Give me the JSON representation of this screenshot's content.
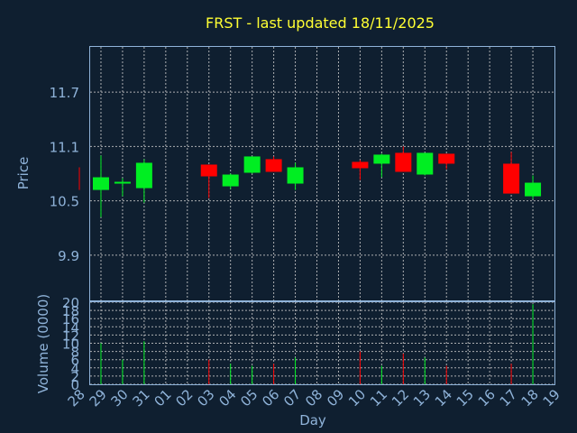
{
  "title": "FRST - last updated 18/11/2025",
  "colors": {
    "background": "#0f1f30",
    "title": "#ffff33",
    "axis": "#8fb3d9",
    "up": "#00ee22",
    "down": "#ff0000",
    "grid": "#c8c8c8"
  },
  "chart_data": [
    {
      "type": "candlestick",
      "ylabel": "Price",
      "ylim": [
        9.4,
        12.2
      ],
      "yticks": [
        "9.9",
        "10.5",
        "11.1",
        "11.7"
      ],
      "grid": true,
      "categories": [
        "28",
        "29",
        "30",
        "31",
        "01",
        "02",
        "03",
        "04",
        "05",
        "06",
        "07",
        "08",
        "09",
        "10",
        "11",
        "12",
        "13",
        "14",
        "15",
        "16",
        "17",
        "18",
        "19"
      ],
      "candles": [
        {
          "day": "28",
          "open": 10.87,
          "high": 10.87,
          "low": 10.62,
          "close": 10.62
        },
        {
          "day": "29",
          "open": 10.62,
          "high": 11.0,
          "low": 10.32,
          "close": 10.76
        },
        {
          "day": "30",
          "open": 10.69,
          "high": 10.75,
          "low": 10.55,
          "close": 10.71
        },
        {
          "day": "31",
          "open": 10.64,
          "high": 10.96,
          "low": 10.48,
          "close": 10.92
        },
        {
          "day": "03",
          "open": 10.9,
          "high": 10.9,
          "low": 10.53,
          "close": 10.77
        },
        {
          "day": "04",
          "open": 10.66,
          "high": 10.8,
          "low": 10.63,
          "close": 10.79
        },
        {
          "day": "05",
          "open": 10.81,
          "high": 10.99,
          "low": 10.8,
          "close": 10.99
        },
        {
          "day": "06",
          "open": 10.96,
          "high": 10.99,
          "low": 10.82,
          "close": 10.82
        },
        {
          "day": "07",
          "open": 10.69,
          "high": 10.92,
          "low": 10.62,
          "close": 10.87
        },
        {
          "day": "10",
          "open": 10.93,
          "high": 10.95,
          "low": 10.73,
          "close": 10.86
        },
        {
          "day": "11",
          "open": 10.91,
          "high": 11.02,
          "low": 10.76,
          "close": 11.01
        },
        {
          "day": "12",
          "open": 11.03,
          "high": 11.1,
          "low": 10.82,
          "close": 10.82
        },
        {
          "day": "13",
          "open": 10.79,
          "high": 11.03,
          "low": 10.78,
          "close": 11.03
        },
        {
          "day": "14",
          "open": 11.02,
          "high": 11.02,
          "low": 10.85,
          "close": 10.91
        },
        {
          "day": "17",
          "open": 10.91,
          "high": 11.04,
          "low": 10.58,
          "close": 10.58
        },
        {
          "day": "18",
          "open": 10.55,
          "high": 10.78,
          "low": 10.52,
          "close": 10.7
        }
      ]
    },
    {
      "type": "bar",
      "ylabel": "Volume (0000)",
      "xlabel": "Day",
      "ylim": [
        0,
        20
      ],
      "yticks": [
        "0",
        "2",
        "4",
        "6",
        "8",
        "10",
        "12",
        "14",
        "16",
        "18",
        "20"
      ],
      "grid": true,
      "volume": [
        {
          "day": "29",
          "value": 10.0,
          "direction": "up"
        },
        {
          "day": "30",
          "value": 6.0,
          "direction": "up"
        },
        {
          "day": "31",
          "value": 10.5,
          "direction": "up"
        },
        {
          "day": "03",
          "value": 6.0,
          "direction": "down"
        },
        {
          "day": "04",
          "value": 5.0,
          "direction": "up"
        },
        {
          "day": "05",
          "value": 4.5,
          "direction": "up"
        },
        {
          "day": "06",
          "value": 5.0,
          "direction": "down"
        },
        {
          "day": "07",
          "value": 6.5,
          "direction": "up"
        },
        {
          "day": "10",
          "value": 8.0,
          "direction": "down"
        },
        {
          "day": "11",
          "value": 4.5,
          "direction": "up"
        },
        {
          "day": "12",
          "value": 7.5,
          "direction": "down"
        },
        {
          "day": "13",
          "value": 6.5,
          "direction": "up"
        },
        {
          "day": "14",
          "value": 4.5,
          "direction": "down"
        },
        {
          "day": "17",
          "value": 5.0,
          "direction": "down"
        },
        {
          "day": "18",
          "value": 19.5,
          "direction": "up"
        }
      ]
    }
  ]
}
